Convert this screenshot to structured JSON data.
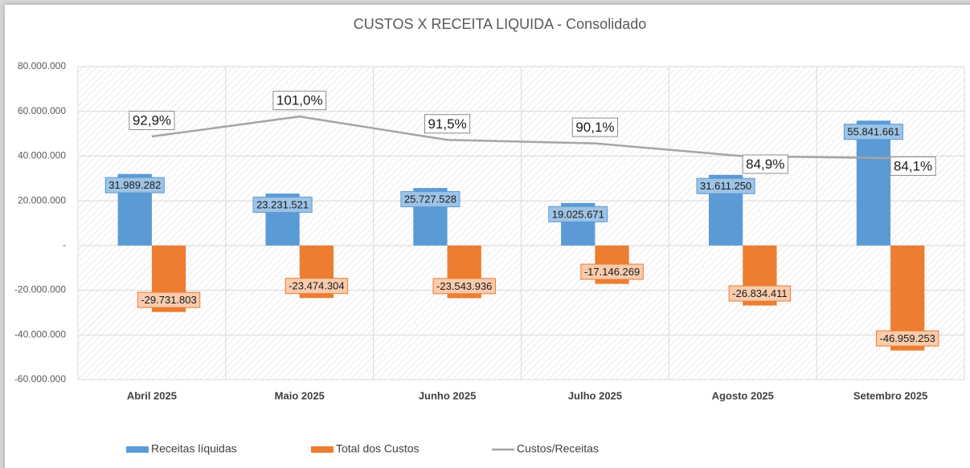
{
  "chart_data": {
    "type": "bar",
    "title": "CUSTOS X RECEITA LIQUIDA - Consolidado",
    "categories": [
      "Abril 2025",
      "Maio 2025",
      "Junho 2025",
      "Julho 2025",
      "Agosto 2025",
      "Setembro 2025"
    ],
    "series": [
      {
        "name": "Receitas líquidas",
        "color": "#5b9bd5",
        "type": "bar",
        "values": [
          31989282,
          23231521,
          25727528,
          19025671,
          31611250,
          55841661
        ],
        "value_labels": [
          "31.989.282",
          "23.231.521",
          "25.727.528",
          "19.025.671",
          "31.611.250",
          "55.841.661"
        ]
      },
      {
        "name": "Total dos Custos",
        "color": "#ed7d31",
        "type": "bar",
        "values": [
          -29731803,
          -23474304,
          -23543936,
          -17146269,
          -26834411,
          -46959253
        ],
        "value_labels": [
          "-29.731.803",
          "-23.474.304",
          "-23.543.936",
          "-17.146.269",
          "-26.834.411",
          "-46.959.253"
        ]
      },
      {
        "name": "Custos/Receitas",
        "color": "#a5a5a5",
        "type": "line",
        "axis": "y2",
        "values": [
          92.9,
          101.0,
          91.5,
          90.1,
          84.9,
          84.1
        ],
        "value_labels": [
          "92,9%",
          "101,0%",
          "91,5%",
          "90,1%",
          "84,9%",
          "84,1%"
        ]
      }
    ],
    "ylim": [
      -60000000,
      80000000
    ],
    "yticks": [
      {
        "value": -60000000,
        "label": "-60.000.000"
      },
      {
        "value": -40000000,
        "label": "-40.000.000"
      },
      {
        "value": -20000000,
        "label": "-20.000.000"
      },
      {
        "value": 0,
        "label": "-"
      },
      {
        "value": 20000000,
        "label": "20.000.000"
      },
      {
        "value": 40000000,
        "label": "40.000.000"
      },
      {
        "value": 60000000,
        "label": "60.000.000"
      },
      {
        "value": 80000000,
        "label": "80.000.000"
      }
    ],
    "y2lim": [
      -6,
      121.3
    ],
    "grid": true,
    "legend": "bottom"
  }
}
